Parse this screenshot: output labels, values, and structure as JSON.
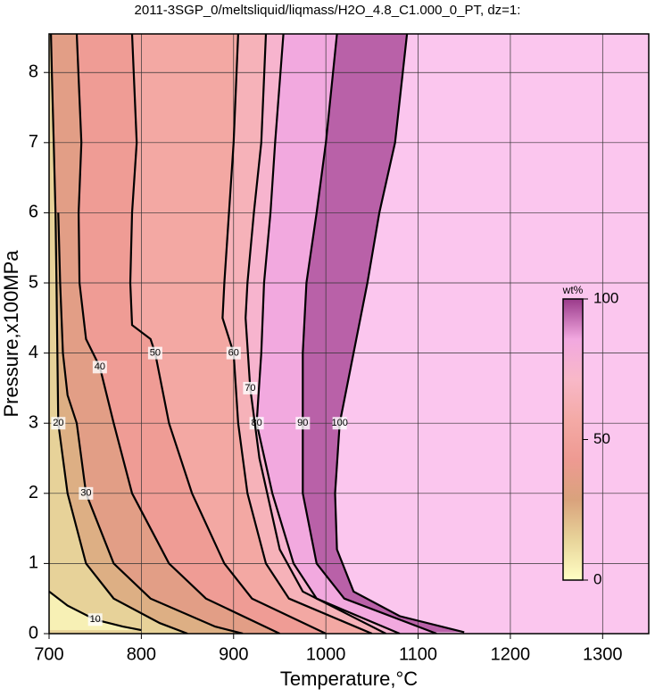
{
  "chart_data": {
    "type": "contour",
    "title": "2011-3SGP_0/meltsliquid/liqmass/H2O_4.8_C1.000_0_PT, dz=1:",
    "xlabel": "Temperature,°C",
    "ylabel": "Pressure,x100MPa",
    "xlim": [
      700,
      1350
    ],
    "ylim": [
      0,
      8.55
    ],
    "xticks": [
      700,
      800,
      900,
      1000,
      1100,
      1200,
      1300
    ],
    "yticks": [
      0,
      1,
      2,
      3,
      4,
      5,
      6,
      7,
      8
    ],
    "grid": true,
    "background": "#fbc6ee",
    "colorbar": {
      "label": "wt%",
      "lim": [
        0,
        100
      ],
      "ticks": [
        0,
        50,
        100
      ],
      "colors": [
        "#ffffc4",
        "#e8d49a",
        "#d9a27c",
        "#ee9a92",
        "#f4aaa6",
        "#f8b8c8",
        "#f2a8e0",
        "#9a3a8a"
      ]
    },
    "contours": [
      {
        "level": 100,
        "x": [
          1088,
          1075,
          1058,
          1045,
          1030,
          1015,
          1010,
          1012,
          1030,
          1080,
          1150
        ],
        "y": [
          8.55,
          7,
          6,
          5,
          4,
          3,
          2,
          1.2,
          0.6,
          0.25,
          0.02
        ]
      },
      {
        "level": 90,
        "x": [
          1012,
          1000,
          990,
          979,
          975,
          975,
          975,
          990,
          1020,
          1100,
          1120
        ],
        "y": [
          8.55,
          7,
          6,
          5,
          4,
          3,
          2,
          1,
          0.5,
          0.1,
          0
        ]
      },
      {
        "level": 80,
        "x": [
          954,
          945,
          940,
          933,
          930,
          925,
          942,
          965,
          990,
          1080
        ],
        "y": [
          8.55,
          7,
          6,
          5,
          4,
          3,
          2,
          1,
          0.5,
          0
        ]
      },
      {
        "level": 70,
        "x": [
          935,
          930,
          922,
          915,
          913,
          918,
          928,
          950,
          975,
          1065
        ],
        "y": [
          8.55,
          7,
          6,
          5,
          4.5,
          3.5,
          2.5,
          1.2,
          0.6,
          0
        ]
      },
      {
        "level": 60,
        "x": [
          905,
          900,
          895,
          890,
          888,
          900,
          905,
          915,
          935,
          960,
          1050
        ],
        "y": [
          8.55,
          7,
          6,
          5,
          4.5,
          4,
          3,
          2,
          1,
          0.5,
          0
        ]
      },
      {
        "level": 50,
        "x": [
          790,
          795,
          790,
          788,
          790,
          810,
          815,
          830,
          855,
          890,
          920,
          1000
        ],
        "y": [
          8.55,
          7,
          6,
          5,
          4.4,
          4.2,
          4,
          3,
          2,
          1,
          0.5,
          0
        ]
      },
      {
        "level": 40,
        "x": [
          730,
          735,
          732,
          733,
          740,
          755,
          770,
          790,
          830,
          870,
          950
        ],
        "y": [
          8.55,
          7,
          6,
          5,
          4.2,
          3.8,
          3,
          2,
          1,
          0.5,
          0
        ]
      },
      {
        "level": 30,
        "x": [
          710,
          712,
          715,
          720,
          730,
          740,
          770,
          810,
          880,
          910
        ],
        "y": [
          6,
          5,
          4,
          3.4,
          3,
          2,
          1,
          0.5,
          0.1,
          0
        ]
      },
      {
        "level": 20,
        "x": [
          702,
          703,
          705,
          707,
          708,
          710,
          720,
          740,
          770,
          820,
          850
        ],
        "y": [
          8.55,
          8,
          7,
          6,
          5,
          3,
          2,
          1,
          0.5,
          0.15,
          0
        ]
      },
      {
        "level": 10,
        "x": [
          700,
          720,
          750,
          780,
          800
        ],
        "y": [
          0.6,
          0.4,
          0.2,
          0.1,
          0.05
        ]
      }
    ]
  }
}
